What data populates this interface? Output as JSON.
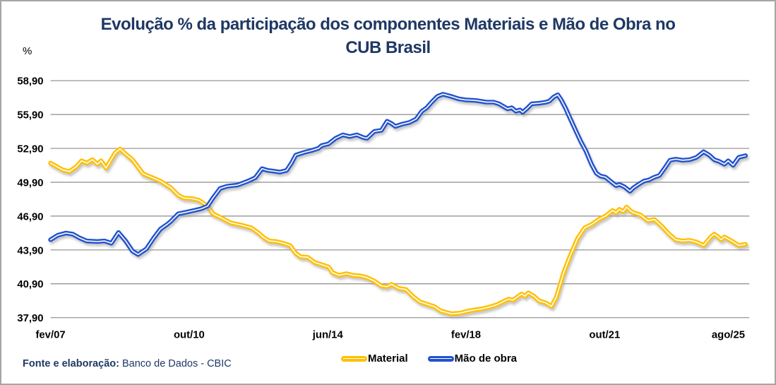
{
  "header": {
    "title": "Evolução % da participação dos componentes Materiais e Mão de Obra no CUB Brasil"
  },
  "axes": {
    "y_unit": "%"
  },
  "legend": {
    "items": [
      {
        "label": "Material",
        "color": "#FFC000"
      },
      {
        "label": "Mão de obra",
        "color": "#2253CE"
      }
    ]
  },
  "footer": {
    "label": "Fonte e elaboração:",
    "source": "Banco de Dados - CBIC"
  },
  "colors": {
    "title_text": "#1F3864",
    "grid": "#8C8C8C",
    "axis_text": "#000000",
    "frame_border": "#A6A6A6",
    "material": "#FFC000",
    "mao_de_obra": "#2253CE",
    "line_inner_stripe": "#FFFFFF",
    "shadow": "#9A9A9A"
  },
  "chart_data": {
    "type": "line",
    "title": "Evolução % da participação dos componentes Materiais e Mão de Obra no CUB Brasil",
    "xlabel": "",
    "ylabel": "%",
    "ylim": [
      37.9,
      58.9
    ],
    "x_range": [
      2007.08,
      2025.58
    ],
    "grid": "horizontal",
    "legend_position": "bottom",
    "y_ticks": [
      {
        "v": 58.9,
        "label": "58,90"
      },
      {
        "v": 55.9,
        "label": "55,90"
      },
      {
        "v": 52.9,
        "label": "52,90"
      },
      {
        "v": 49.9,
        "label": "49,90"
      },
      {
        "v": 46.9,
        "label": "46,90"
      },
      {
        "v": 43.9,
        "label": "43,90"
      },
      {
        "v": 40.9,
        "label": "40,90"
      },
      {
        "v": 37.9,
        "label": "37,90"
      }
    ],
    "x_ticks": [
      {
        "t": 2007.08,
        "label": "fev/07"
      },
      {
        "t": 2010.75,
        "label": "out/10"
      },
      {
        "t": 2014.42,
        "label": "jun/14"
      },
      {
        "t": 2018.08,
        "label": "fev/18"
      },
      {
        "t": 2021.75,
        "label": "out/21"
      },
      {
        "t": 2025.58,
        "label": "ago/25"
      }
    ],
    "series": [
      {
        "name": "Material",
        "color": "#FFC000",
        "points": [
          [
            2007.08,
            51.6
          ],
          [
            2007.4,
            51.0
          ],
          [
            2007.58,
            50.85
          ],
          [
            2007.77,
            51.3
          ],
          [
            2007.9,
            51.8
          ],
          [
            2008.04,
            51.6
          ],
          [
            2008.19,
            51.9
          ],
          [
            2008.32,
            51.5
          ],
          [
            2008.42,
            51.8
          ],
          [
            2008.55,
            51.15
          ],
          [
            2008.79,
            52.5
          ],
          [
            2008.92,
            52.85
          ],
          [
            2009.07,
            52.4
          ],
          [
            2009.25,
            51.9
          ],
          [
            2009.53,
            50.65
          ],
          [
            2009.71,
            50.4
          ],
          [
            2009.99,
            50.0
          ],
          [
            2010.27,
            49.4
          ],
          [
            2010.46,
            48.75
          ],
          [
            2010.61,
            48.5
          ],
          [
            2010.83,
            48.45
          ],
          [
            2011.01,
            48.3
          ],
          [
            2011.24,
            47.8
          ],
          [
            2011.38,
            47.1
          ],
          [
            2011.57,
            46.8
          ],
          [
            2011.85,
            46.3
          ],
          [
            2012.13,
            46.1
          ],
          [
            2012.4,
            45.85
          ],
          [
            2012.59,
            45.4
          ],
          [
            2012.72,
            45.0
          ],
          [
            2012.87,
            44.7
          ],
          [
            2013.05,
            44.65
          ],
          [
            2013.24,
            44.5
          ],
          [
            2013.42,
            44.3
          ],
          [
            2013.57,
            43.6
          ],
          [
            2013.7,
            43.3
          ],
          [
            2013.89,
            43.25
          ],
          [
            2014.07,
            42.8
          ],
          [
            2014.26,
            42.6
          ],
          [
            2014.44,
            42.4
          ],
          [
            2014.54,
            41.9
          ],
          [
            2014.72,
            41.65
          ],
          [
            2014.91,
            41.8
          ],
          [
            2015.09,
            41.65
          ],
          [
            2015.28,
            41.6
          ],
          [
            2015.46,
            41.45
          ],
          [
            2015.65,
            41.15
          ],
          [
            2015.84,
            40.7
          ],
          [
            2015.99,
            40.65
          ],
          [
            2016.11,
            40.85
          ],
          [
            2016.3,
            40.5
          ],
          [
            2016.49,
            40.4
          ],
          [
            2016.67,
            39.8
          ],
          [
            2016.86,
            39.3
          ],
          [
            2017.04,
            39.1
          ],
          [
            2017.23,
            38.9
          ],
          [
            2017.41,
            38.5
          ],
          [
            2017.69,
            38.25
          ],
          [
            2017.91,
            38.3
          ],
          [
            2018.16,
            38.5
          ],
          [
            2018.34,
            38.6
          ],
          [
            2018.53,
            38.7
          ],
          [
            2018.71,
            38.85
          ],
          [
            2018.9,
            39.05
          ],
          [
            2019.08,
            39.35
          ],
          [
            2019.21,
            39.55
          ],
          [
            2019.32,
            39.45
          ],
          [
            2019.55,
            40.0
          ],
          [
            2019.64,
            39.8
          ],
          [
            2019.73,
            40.1
          ],
          [
            2019.88,
            39.8
          ],
          [
            2020.01,
            39.4
          ],
          [
            2020.2,
            39.2
          ],
          [
            2020.34,
            38.9
          ],
          [
            2020.47,
            39.7
          ],
          [
            2020.66,
            41.85
          ],
          [
            2020.85,
            43.5
          ],
          [
            2021.03,
            44.9
          ],
          [
            2021.22,
            45.85
          ],
          [
            2021.4,
            46.15
          ],
          [
            2021.59,
            46.6
          ],
          [
            2021.77,
            46.9
          ],
          [
            2021.96,
            47.4
          ],
          [
            2022.05,
            47.2
          ],
          [
            2022.14,
            47.5
          ],
          [
            2022.24,
            47.3
          ],
          [
            2022.33,
            47.7
          ],
          [
            2022.42,
            47.4
          ],
          [
            2022.51,
            47.2
          ],
          [
            2022.7,
            47.0
          ],
          [
            2022.89,
            46.5
          ],
          [
            2023.07,
            46.6
          ],
          [
            2023.26,
            46.0
          ],
          [
            2023.44,
            45.35
          ],
          [
            2023.63,
            44.8
          ],
          [
            2023.81,
            44.7
          ],
          [
            2024.0,
            44.75
          ],
          [
            2024.18,
            44.6
          ],
          [
            2024.37,
            44.3
          ],
          [
            2024.56,
            45.05
          ],
          [
            2024.65,
            45.3
          ],
          [
            2024.74,
            45.1
          ],
          [
            2024.83,
            44.8
          ],
          [
            2024.92,
            45.05
          ],
          [
            2025.11,
            44.7
          ],
          [
            2025.3,
            44.3
          ],
          [
            2025.48,
            44.4
          ]
        ]
      },
      {
        "name": "Mão de obra",
        "color": "#2253CE",
        "points": [
          [
            2007.08,
            44.8
          ],
          [
            2007.27,
            45.2
          ],
          [
            2007.49,
            45.4
          ],
          [
            2007.67,
            45.3
          ],
          [
            2007.86,
            44.95
          ],
          [
            2008.04,
            44.7
          ],
          [
            2008.32,
            44.65
          ],
          [
            2008.51,
            44.7
          ],
          [
            2008.69,
            44.5
          ],
          [
            2008.88,
            45.45
          ],
          [
            2009.07,
            44.7
          ],
          [
            2009.25,
            43.8
          ],
          [
            2009.4,
            43.5
          ],
          [
            2009.62,
            44.0
          ],
          [
            2009.81,
            44.95
          ],
          [
            2009.99,
            45.75
          ],
          [
            2010.18,
            46.2
          ],
          [
            2010.27,
            46.45
          ],
          [
            2010.46,
            47.1
          ],
          [
            2010.68,
            47.25
          ],
          [
            2010.88,
            47.4
          ],
          [
            2011.07,
            47.55
          ],
          [
            2011.24,
            47.8
          ],
          [
            2011.38,
            48.5
          ],
          [
            2011.57,
            49.35
          ],
          [
            2011.76,
            49.55
          ],
          [
            2012.03,
            49.65
          ],
          [
            2012.31,
            50.0
          ],
          [
            2012.5,
            50.3
          ],
          [
            2012.68,
            51.1
          ],
          [
            2012.83,
            50.95
          ],
          [
            2012.96,
            50.9
          ],
          [
            2013.15,
            50.8
          ],
          [
            2013.33,
            50.95
          ],
          [
            2013.46,
            51.6
          ],
          [
            2013.57,
            52.3
          ],
          [
            2013.8,
            52.55
          ],
          [
            2013.98,
            52.7
          ],
          [
            2014.17,
            52.9
          ],
          [
            2014.26,
            53.15
          ],
          [
            2014.44,
            53.3
          ],
          [
            2014.63,
            53.8
          ],
          [
            2014.82,
            54.1
          ],
          [
            2015.0,
            53.95
          ],
          [
            2015.19,
            54.1
          ],
          [
            2015.37,
            53.85
          ],
          [
            2015.46,
            53.8
          ],
          [
            2015.65,
            54.4
          ],
          [
            2015.84,
            54.5
          ],
          [
            2015.99,
            55.3
          ],
          [
            2016.11,
            55.1
          ],
          [
            2016.21,
            54.85
          ],
          [
            2016.39,
            55.05
          ],
          [
            2016.58,
            55.2
          ],
          [
            2016.76,
            55.5
          ],
          [
            2016.91,
            56.2
          ],
          [
            2017.04,
            56.5
          ],
          [
            2017.17,
            57.0
          ],
          [
            2017.32,
            57.5
          ],
          [
            2017.47,
            57.7
          ],
          [
            2017.69,
            57.5
          ],
          [
            2017.88,
            57.3
          ],
          [
            2018.06,
            57.2
          ],
          [
            2018.34,
            57.15
          ],
          [
            2018.62,
            57.0
          ],
          [
            2018.81,
            57.0
          ],
          [
            2018.95,
            56.85
          ],
          [
            2019.08,
            56.6
          ],
          [
            2019.18,
            56.4
          ],
          [
            2019.29,
            56.5
          ],
          [
            2019.4,
            56.2
          ],
          [
            2019.51,
            56.3
          ],
          [
            2019.58,
            56.1
          ],
          [
            2019.7,
            56.45
          ],
          [
            2019.82,
            56.85
          ],
          [
            2020.01,
            56.9
          ],
          [
            2020.2,
            57.0
          ],
          [
            2020.29,
            57.1
          ],
          [
            2020.4,
            57.45
          ],
          [
            2020.51,
            57.65
          ],
          [
            2020.6,
            57.2
          ],
          [
            2020.71,
            56.5
          ],
          [
            2020.85,
            55.45
          ],
          [
            2020.98,
            54.5
          ],
          [
            2021.12,
            53.5
          ],
          [
            2021.25,
            52.7
          ],
          [
            2021.4,
            51.5
          ],
          [
            2021.53,
            50.7
          ],
          [
            2021.64,
            50.45
          ],
          [
            2021.77,
            50.35
          ],
          [
            2021.9,
            50.0
          ],
          [
            2022.05,
            49.6
          ],
          [
            2022.14,
            49.7
          ],
          [
            2022.27,
            49.5
          ],
          [
            2022.42,
            49.1
          ],
          [
            2022.51,
            49.4
          ],
          [
            2022.64,
            49.7
          ],
          [
            2022.79,
            50.0
          ],
          [
            2022.92,
            50.1
          ],
          [
            2023.07,
            50.35
          ],
          [
            2023.2,
            50.5
          ],
          [
            2023.35,
            51.2
          ],
          [
            2023.48,
            51.85
          ],
          [
            2023.63,
            51.95
          ],
          [
            2023.81,
            51.85
          ],
          [
            2024.0,
            51.9
          ],
          [
            2024.18,
            52.1
          ],
          [
            2024.37,
            52.6
          ],
          [
            2024.52,
            52.3
          ],
          [
            2024.65,
            51.9
          ],
          [
            2024.78,
            51.75
          ],
          [
            2024.92,
            51.5
          ],
          [
            2025.02,
            51.8
          ],
          [
            2025.15,
            51.4
          ],
          [
            2025.3,
            52.1
          ],
          [
            2025.48,
            52.25
          ]
        ]
      }
    ]
  }
}
